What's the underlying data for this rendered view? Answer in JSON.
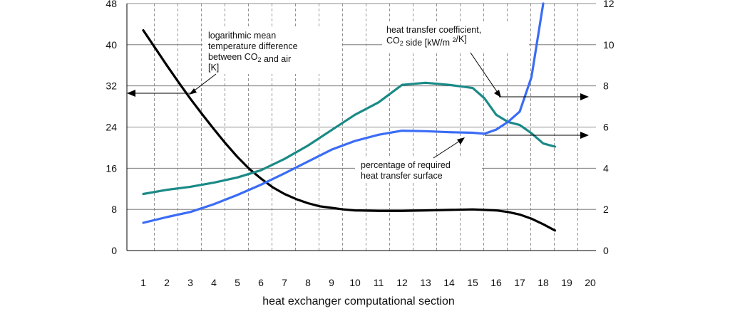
{
  "chart_data": {
    "type": "line",
    "xlabel": "heat exchanger computational section",
    "x_ticks": [
      "1",
      "2",
      "3",
      "4",
      "5",
      "6",
      "7",
      "8",
      "9",
      "10",
      "11",
      "12",
      "13",
      "14",
      "15",
      "16",
      "17",
      "18",
      "19",
      "20"
    ],
    "left_axis": {
      "ylim": [
        0,
        48
      ],
      "ticks": [
        "0",
        "8",
        "16",
        "24",
        "32",
        "40",
        "48"
      ]
    },
    "right_axis": {
      "ylim": [
        0,
        12
      ],
      "ticks": [
        "0",
        "2",
        "4",
        "6",
        "8",
        "10",
        "12"
      ]
    },
    "grid": {
      "horizontal": "solid",
      "vertical": "dashed"
    },
    "series": [
      {
        "name": "logarithmic mean temperature difference between CO2 and air [K]",
        "axis": "left",
        "color": "#000000",
        "x": [
          1,
          1.5,
          2,
          2.5,
          3,
          3.5,
          4,
          4.5,
          5,
          5.5,
          6,
          6.5,
          7,
          7.5,
          8,
          8.5,
          9,
          9.5,
          10,
          11,
          12,
          13,
          14,
          15,
          15.5,
          16,
          16.5,
          17,
          17.5,
          18,
          18.5
        ],
        "y": [
          42.8,
          39.4,
          36.0,
          32.7,
          29.5,
          26.5,
          23.6,
          20.8,
          18.2,
          15.9,
          14.0,
          12.3,
          11.0,
          10.0,
          9.2,
          8.6,
          8.3,
          8.0,
          7.8,
          7.7,
          7.7,
          7.8,
          7.9,
          8.0,
          7.9,
          7.8,
          7.5,
          7.0,
          6.2,
          5.1,
          3.9
        ]
      },
      {
        "name": "heat transfer coefficient, CO2 side [kW/m2/K]",
        "axis": "right",
        "color": "#1b8a87",
        "x": [
          1,
          2,
          3,
          4,
          5,
          6,
          7,
          8,
          9,
          10,
          11,
          12,
          13,
          14,
          15,
          15.5,
          16,
          16.5,
          17,
          17.5,
          18,
          18.5
        ],
        "y": [
          2.75,
          2.95,
          3.1,
          3.3,
          3.55,
          3.9,
          4.45,
          5.1,
          5.85,
          6.6,
          7.2,
          8.05,
          8.15,
          8.05,
          7.9,
          7.4,
          6.6,
          6.25,
          6.1,
          5.7,
          5.2,
          5.05
        ]
      },
      {
        "name": "percentage of required heat transfer surface",
        "axis": "left",
        "color": "#3a6cf6",
        "x": [
          1,
          2,
          3,
          4,
          5,
          6,
          7,
          8,
          9,
          10,
          11,
          12,
          13,
          14,
          15,
          15.5,
          16,
          16.5,
          17,
          17.5,
          18
        ],
        "y": [
          5.4,
          6.5,
          7.5,
          9.0,
          10.8,
          12.8,
          15.0,
          17.3,
          19.6,
          21.3,
          22.5,
          23.3,
          23.2,
          23.0,
          22.9,
          22.7,
          23.5,
          25.0,
          27.0,
          33.7,
          48.0
        ]
      }
    ],
    "annotations": [
      {
        "lines": [
          [
            {
              "text": "logarithmic mean"
            }
          ],
          [
            {
              "text": "temperature difference"
            }
          ],
          [
            {
              "text": "between CO"
            },
            {
              "text": "2",
              "sub": true
            },
            {
              "text": " and air"
            }
          ],
          [
            {
              "text": "[K]"
            }
          ]
        ]
      },
      {
        "lines": [
          [
            {
              "text": "heat transfer coefficient,"
            }
          ],
          [
            {
              "text": "CO"
            },
            {
              "text": "2",
              "sub": true
            },
            {
              "text": " side [kW/m "
            },
            {
              "text": "2",
              "sup": true
            },
            {
              "text": "/K]"
            }
          ]
        ]
      },
      {
        "lines": [
          [
            {
              "text": "percentage of required"
            }
          ],
          [
            {
              "text": "heat transfer surface"
            }
          ]
        ]
      }
    ]
  }
}
